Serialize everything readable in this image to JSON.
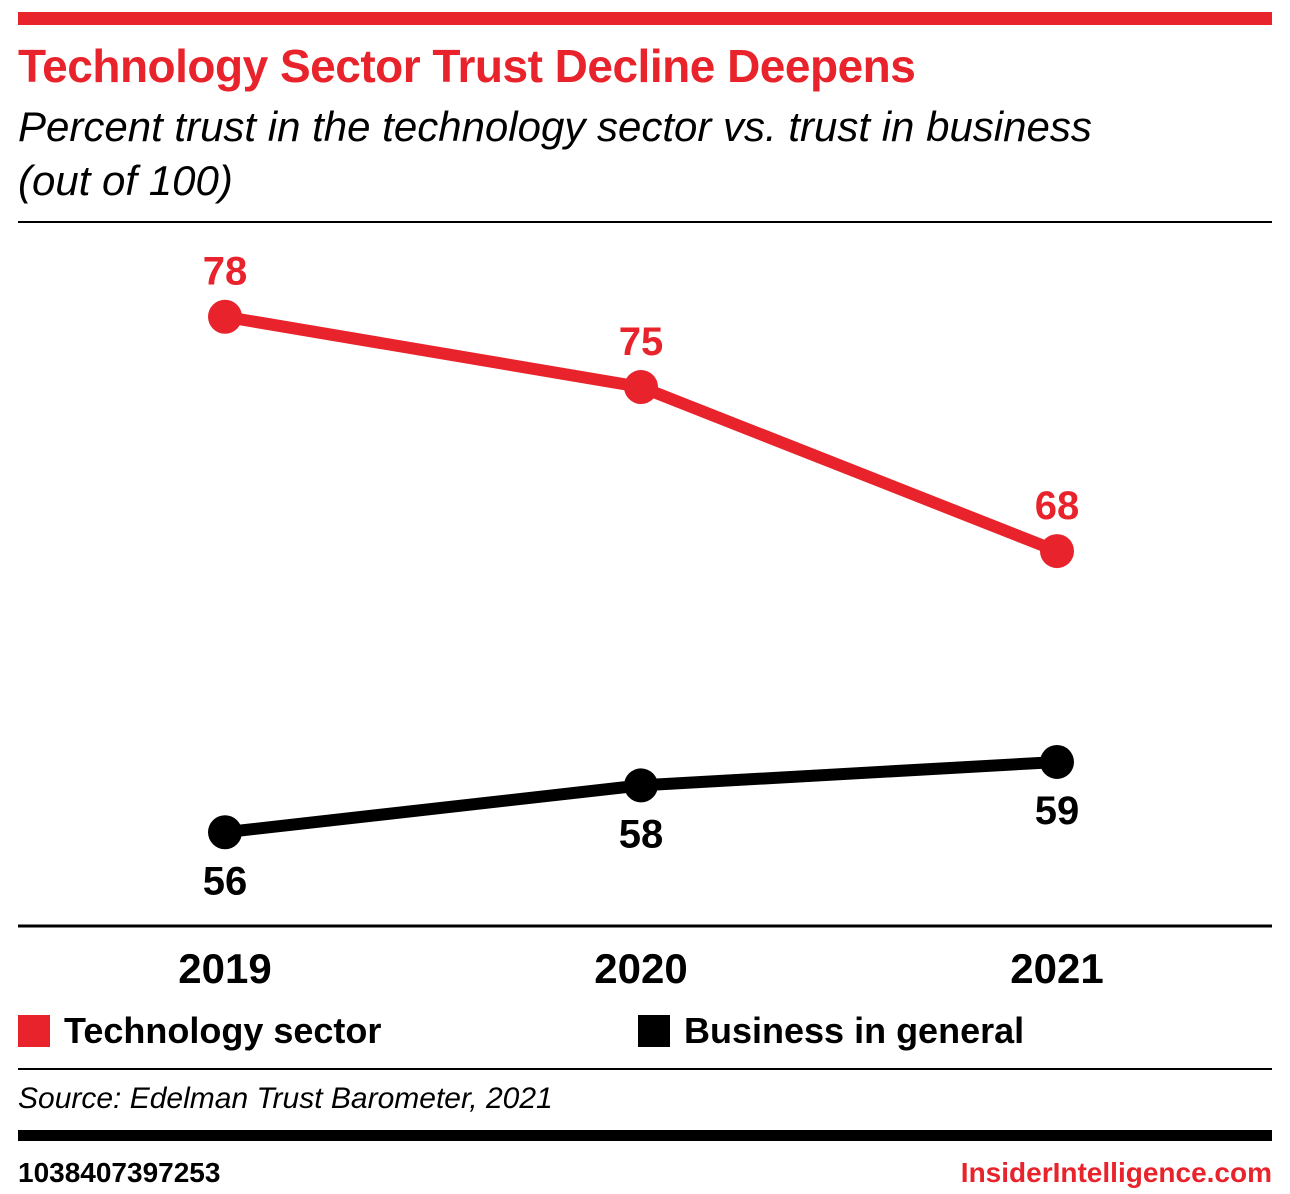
{
  "colors": {
    "accent": "#e8232b",
    "black": "#000000",
    "background": "#ffffff"
  },
  "header": {
    "title": "Technology Sector Trust Decline Deepens",
    "subtitle": "Percent trust in the technology sector vs. trust in business (out of 100)"
  },
  "chart_data": {
    "type": "line",
    "title": "Technology Sector Trust Decline Deepens",
    "subtitle": "Percent trust in the technology sector vs. trust in business (out of 100)",
    "categories": [
      "2019",
      "2020",
      "2021"
    ],
    "series": [
      {
        "name": "Technology sector",
        "color": "#e8232b",
        "values": [
          78,
          75,
          68
        ],
        "label_position": "above"
      },
      {
        "name": "Business in general",
        "color": "#000000",
        "values": [
          56,
          58,
          59
        ],
        "label_position": "below"
      }
    ],
    "xlabel": "",
    "ylabel": "",
    "ylim": [
      52,
      82
    ],
    "grid": false,
    "legend_position": "bottom",
    "data_labels": true
  },
  "legend": {
    "items": [
      {
        "label": "Technology sector",
        "color": "#e8232b"
      },
      {
        "label": "Business in general",
        "color": "#000000"
      }
    ]
  },
  "footer": {
    "source": "Source: Edelman Trust Barometer, 2021",
    "chart_id": "1038407397253",
    "site": "InsiderIntelligence.com"
  }
}
